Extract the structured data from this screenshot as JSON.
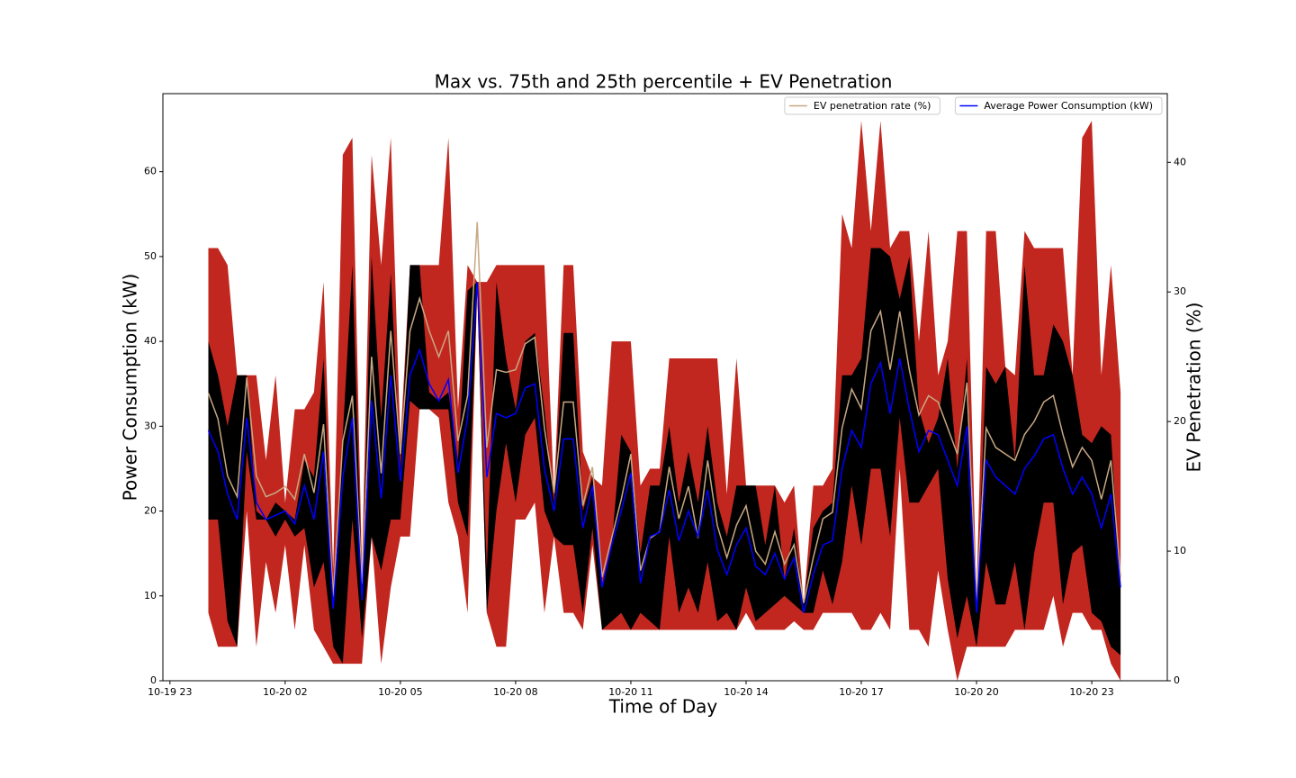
{
  "chart_data": {
    "type": "band",
    "title": "Max vs. 75th and 25th percentile + EV Penetration",
    "x_label": "Time of Day",
    "y_label": "Power Consumption (kW)",
    "y2_label": "EV Penetration (%)",
    "x": [
      "10-20 00:00",
      "10-20 00:15",
      "10-20 00:30",
      "10-20 00:45",
      "10-20 01:00",
      "10-20 01:15",
      "10-20 01:30",
      "10-20 01:45",
      "10-20 02:00",
      "10-20 02:15",
      "10-20 02:30",
      "10-20 02:45",
      "10-20 03:00",
      "10-20 03:15",
      "10-20 03:30",
      "10-20 03:45",
      "10-20 04:00",
      "10-20 04:15",
      "10-20 04:30",
      "10-20 04:45",
      "10-20 05:00",
      "10-20 05:15",
      "10-20 05:30",
      "10-20 05:45",
      "10-20 06:00",
      "10-20 06:15",
      "10-20 06:30",
      "10-20 06:45",
      "10-20 07:00",
      "10-20 07:15",
      "10-20 07:30",
      "10-20 07:45",
      "10-20 08:00",
      "10-20 08:15",
      "10-20 08:30",
      "10-20 08:45",
      "10-20 09:00",
      "10-20 09:15",
      "10-20 09:30",
      "10-20 09:45",
      "10-20 10:00",
      "10-20 10:15",
      "10-20 10:30",
      "10-20 10:45",
      "10-20 11:00",
      "10-20 11:15",
      "10-20 11:30",
      "10-20 11:45",
      "10-20 12:00",
      "10-20 12:15",
      "10-20 12:30",
      "10-20 12:45",
      "10-20 13:00",
      "10-20 13:15",
      "10-20 13:30",
      "10-20 13:45",
      "10-20 14:00",
      "10-20 14:15",
      "10-20 14:30",
      "10-20 14:45",
      "10-20 15:00",
      "10-20 15:15",
      "10-20 15:30",
      "10-20 15:45",
      "10-20 16:00",
      "10-20 16:15",
      "10-20 16:30",
      "10-20 16:45",
      "10-20 17:00",
      "10-20 17:15",
      "10-20 17:30",
      "10-20 17:45",
      "10-20 18:00",
      "10-20 18:15",
      "10-20 18:30",
      "10-20 18:45",
      "10-20 19:00",
      "10-20 19:15",
      "10-20 19:30",
      "10-20 19:45",
      "10-20 20:00",
      "10-20 20:15",
      "10-20 20:30",
      "10-20 20:45",
      "10-20 21:00",
      "10-20 21:15",
      "10-20 21:30",
      "10-20 21:45",
      "10-20 22:00",
      "10-20 22:15",
      "10-20 22:30",
      "10-20 22:45",
      "10-20 23:00",
      "10-20 23:15",
      "10-20 23:30",
      "10-20 23:45"
    ],
    "xlim": [
      "10-19 22:49",
      "10-21 00:58"
    ],
    "xticks": [
      "10-19 23",
      "10-20 02",
      "10-20 05",
      "10-20 08",
      "10-20 11",
      "10-20 14",
      "10-20 17",
      "10-20 20",
      "10-20 23"
    ],
    "ylim": [
      0,
      69.2
    ],
    "yticks": [
      0,
      10,
      20,
      30,
      40,
      50,
      60
    ],
    "y2lim": [
      0,
      45.3
    ],
    "y2ticks": [
      0,
      10,
      20,
      30,
      40
    ],
    "bands": [
      {
        "color": "#c1271f",
        "high": [
          51,
          51,
          49,
          36,
          36,
          36,
          26,
          36,
          21,
          32,
          32,
          34,
          47,
          13,
          62,
          64,
          13,
          62,
          49,
          64,
          28,
          49,
          49,
          49,
          49,
          64,
          32,
          49,
          47,
          47,
          49,
          49,
          49,
          49,
          49,
          49,
          22,
          49,
          49,
          27,
          24,
          23,
          40,
          40,
          40,
          23,
          25,
          25,
          38,
          38,
          38,
          38,
          38,
          38,
          22,
          38,
          23,
          23,
          23,
          23,
          21,
          23,
          9,
          23,
          23,
          25,
          55,
          51,
          66,
          53,
          66,
          51,
          53,
          53,
          40,
          53,
          36,
          40,
          53,
          53,
          10,
          53,
          53,
          37,
          36,
          53,
          51,
          51,
          51,
          51,
          36,
          64,
          66,
          36,
          49,
          34
        ],
        "low": [
          8,
          4,
          4,
          4,
          20,
          4,
          14,
          8,
          16,
          6,
          16,
          6,
          4,
          2,
          2,
          2,
          2,
          17,
          2,
          11,
          17,
          17,
          32,
          32,
          31,
          21,
          17,
          8,
          46,
          8,
          4,
          4,
          19,
          19,
          21,
          8,
          17,
          8,
          8,
          6,
          16,
          6,
          6,
          6,
          6,
          6,
          6,
          6,
          6,
          6,
          6,
          6,
          6,
          6,
          6,
          6,
          8,
          6,
          6,
          6,
          6,
          7,
          6,
          6,
          8,
          8,
          8,
          8,
          6,
          6,
          8,
          6,
          25,
          6,
          6,
          4,
          13,
          6,
          0,
          4,
          4,
          4,
          4,
          4,
          6,
          6,
          6,
          6,
          10,
          4,
          8,
          8,
          6,
          6,
          2,
          0
        ]
      },
      {
        "color": "#000000",
        "high": [
          40,
          36,
          30,
          36,
          36,
          20,
          19,
          21,
          20,
          19,
          26,
          24,
          38,
          9,
          29,
          49,
          11,
          50,
          31,
          48,
          25,
          49,
          49,
          34,
          33,
          34,
          26,
          46,
          47,
          13,
          47,
          38,
          32,
          40,
          41,
          32,
          21,
          41,
          41,
          20,
          24,
          11,
          16,
          29,
          27,
          15,
          23,
          23,
          30,
          21,
          27,
          21,
          30,
          21,
          17,
          23,
          23,
          23,
          16,
          23,
          12,
          18,
          9,
          18,
          20,
          21,
          36,
          36,
          38,
          51,
          51,
          50,
          45,
          50,
          32,
          28,
          31,
          38,
          25,
          38,
          8,
          37,
          35,
          37,
          26,
          49,
          36,
          36,
          42,
          40,
          36,
          29,
          28,
          30,
          29,
          11
        ],
        "low": [
          19,
          19,
          7,
          4,
          27,
          19,
          19,
          17,
          19,
          17,
          18,
          11,
          14,
          4,
          2,
          19,
          5,
          17,
          13,
          19,
          19,
          33,
          32,
          32,
          32,
          32,
          21,
          17,
          46,
          8,
          20,
          28,
          21,
          29,
          31,
          20,
          17,
          16,
          16,
          8,
          18,
          6,
          7,
          8,
          6,
          8,
          7,
          6,
          17,
          8,
          11,
          8,
          14,
          7,
          8,
          6,
          11,
          7,
          8,
          9,
          10,
          9,
          8,
          8,
          13,
          9,
          14,
          23,
          16,
          25,
          25,
          17,
          31,
          21,
          21,
          23,
          25,
          12,
          5,
          10,
          4,
          14,
          9,
          9,
          14,
          6,
          15,
          21,
          21,
          9,
          15,
          16,
          8,
          7,
          4,
          3
        ]
      }
    ],
    "series": [
      {
        "name": "EV penetration rate (%)",
        "color": "#c8a883",
        "axis": "y2",
        "values": [
          22.2,
          20.2,
          15.8,
          14.2,
          23.4,
          15.8,
          14.2,
          14.5,
          15,
          14,
          17.5,
          14.5,
          19.8,
          6.5,
          18.5,
          22,
          7.5,
          25,
          16,
          27,
          17.5,
          27,
          29.5,
          27,
          25,
          27,
          18.5,
          22,
          35.4,
          18,
          24,
          23.8,
          24,
          26,
          26.5,
          19.5,
          14.5,
          21.5,
          21.5,
          13.5,
          16.5,
          8,
          11,
          14,
          17.5,
          8.5,
          11,
          11.5,
          16.5,
          12.5,
          15,
          11,
          17,
          12,
          9.5,
          12,
          13.5,
          10,
          9,
          11.5,
          9,
          10.5,
          6,
          9.5,
          12.5,
          13,
          19.5,
          22.5,
          21,
          27,
          28.5,
          24,
          28.5,
          24,
          20.5,
          22,
          21.5,
          19.5,
          17.5,
          23,
          6,
          19.5,
          18,
          17.5,
          17,
          19,
          20,
          21.5,
          22,
          19,
          16.5,
          18,
          17,
          14,
          17,
          8
        ]
      },
      {
        "name": "Average Power Consumption (kW)",
        "color": "#0000ff",
        "values": [
          29.5,
          27,
          22,
          19,
          31,
          21,
          19,
          19.5,
          20,
          18.5,
          23,
          19,
          27,
          8.5,
          24,
          31,
          9.5,
          33,
          21.5,
          36,
          23.5,
          36,
          39,
          35,
          33,
          35.5,
          24.5,
          31,
          47,
          24,
          31.5,
          31,
          31.5,
          34.5,
          35,
          25,
          20,
          28.5,
          28.5,
          18,
          23,
          11,
          16,
          20,
          24.5,
          11.5,
          17,
          17.5,
          22.5,
          16.5,
          20,
          17,
          22.5,
          15.5,
          12.5,
          16,
          18,
          13.5,
          12.5,
          15,
          12,
          14.5,
          8,
          12.5,
          16,
          16.5,
          25,
          29.5,
          27.5,
          35,
          37.5,
          31.5,
          38,
          32,
          27,
          29.5,
          29,
          26,
          23,
          30,
          8,
          26,
          24,
          23,
          22,
          25,
          26.5,
          28.5,
          29,
          25,
          22,
          24,
          22,
          18,
          22,
          11
        ]
      }
    ],
    "legend": "upper right"
  }
}
